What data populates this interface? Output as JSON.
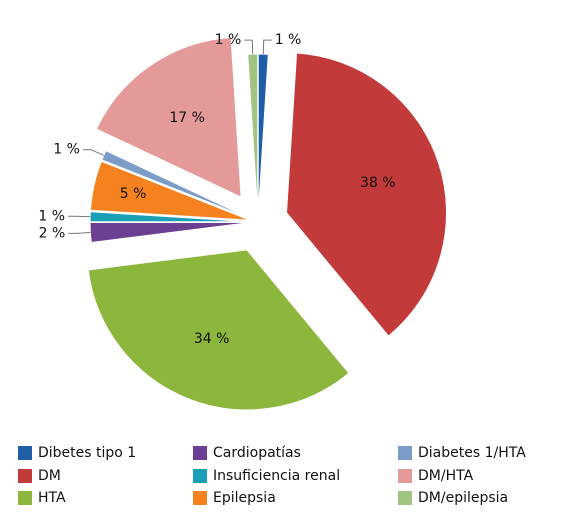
{
  "chart_data": {
    "type": "pie",
    "categories": [
      "Dibetes tipo 1",
      "DM",
      "HTA",
      "Cardiopatías",
      "Insuficiencia renal",
      "Epilepsia",
      "Diabetes 1/HTA",
      "DM/HTA",
      "DM/epilepsia"
    ],
    "values": [
      1,
      38,
      34,
      2,
      1,
      5,
      1,
      17,
      1
    ],
    "value_labels": [
      "1 %",
      "38 %",
      "34 %",
      "2 %",
      "1 %",
      "5 %",
      "1 %",
      "17 %",
      "1 %"
    ],
    "colors": [
      "#1f5fa8",
      "#c23a3a",
      "#8cb63c",
      "#6b3f91",
      "#1a9fb7",
      "#f6821f",
      "#7b9dc7",
      "#e59a9a",
      "#a2c482"
    ]
  }
}
